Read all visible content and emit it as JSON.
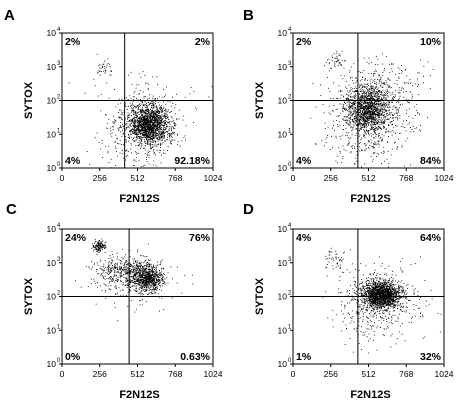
{
  "chart_data": [
    {
      "type": "scatter",
      "panel": "A",
      "xlabel": "F2N12S",
      "ylabel": "SYTOX",
      "xlim": [
        0,
        1024
      ],
      "ylim_log10": [
        0,
        4
      ],
      "x_ticks": [
        "0",
        "256",
        "512",
        "768",
        "1024"
      ],
      "y_ticks": [
        "10",
        "10",
        "10",
        "10",
        "10"
      ],
      "y_tick_exponents": [
        "0",
        "1",
        "2",
        "3",
        "4"
      ],
      "gate": {
        "x": 425,
        "y_log10": 2.0
      },
      "quadrants": {
        "upper_left": "2%",
        "upper_right": "2%",
        "lower_left": "4%",
        "lower_right": "92.18%"
      },
      "clusters": [
        {
          "x": 590,
          "y_log10": 1.3,
          "sx": 65,
          "sy": 0.28,
          "n": 1400
        },
        {
          "x": 570,
          "y_log10": 1.3,
          "sx": 130,
          "sy": 0.5,
          "n": 500
        },
        {
          "x": 280,
          "y_log10": 2.95,
          "sx": 30,
          "sy": 0.12,
          "n": 35
        },
        {
          "x": 450,
          "y_log10": 0.6,
          "sx": 140,
          "sy": 0.35,
          "n": 60
        },
        {
          "x": 500,
          "y_log10": 2.4,
          "sx": 150,
          "sy": 0.4,
          "n": 40
        }
      ]
    },
    {
      "type": "scatter",
      "panel": "B",
      "xlabel": "F2N12S",
      "ylabel": "SYTOX",
      "xlim": [
        0,
        1024
      ],
      "ylim_log10": [
        0,
        4
      ],
      "x_ticks": [
        "0",
        "256",
        "512",
        "768",
        "1024"
      ],
      "y_ticks": [
        "10",
        "10",
        "10",
        "10",
        "10"
      ],
      "y_tick_exponents": [
        "0",
        "1",
        "2",
        "3",
        "4"
      ],
      "gate": {
        "x": 440,
        "y_log10": 2.0
      },
      "quadrants": {
        "upper_left": "2%",
        "upper_right": "10%",
        "lower_left": "4%",
        "lower_right": "84%"
      },
      "clusters": [
        {
          "x": 500,
          "y_log10": 1.75,
          "sx": 75,
          "sy": 0.35,
          "n": 1200
        },
        {
          "x": 520,
          "y_log10": 1.6,
          "sx": 150,
          "sy": 0.6,
          "n": 500
        },
        {
          "x": 290,
          "y_log10": 3.2,
          "sx": 30,
          "sy": 0.15,
          "n": 45
        },
        {
          "x": 620,
          "y_log10": 2.5,
          "sx": 140,
          "sy": 0.45,
          "n": 180
        },
        {
          "x": 480,
          "y_log10": 0.6,
          "sx": 140,
          "sy": 0.35,
          "n": 80
        }
      ]
    },
    {
      "type": "scatter",
      "panel": "C",
      "xlabel": "F2N12S",
      "ylabel": "SYTOX",
      "xlim": [
        0,
        1024
      ],
      "ylim_log10": [
        0,
        4
      ],
      "x_ticks": [
        "0",
        "256",
        "512",
        "768",
        "1024"
      ],
      "y_ticks": [
        "10",
        "10",
        "10",
        "10",
        "10"
      ],
      "y_tick_exponents": [
        "0",
        "1",
        "2",
        "3",
        "4"
      ],
      "gate": {
        "x": 455,
        "y_log10": 2.0
      },
      "quadrants": {
        "upper_left": "24%",
        "upper_right": "76%",
        "lower_left": "0%",
        "lower_right": "0.63%"
      },
      "clusters": [
        {
          "x": 575,
          "y_log10": 2.55,
          "sx": 50,
          "sy": 0.2,
          "n": 700
        },
        {
          "x": 430,
          "y_log10": 2.75,
          "sx": 110,
          "sy": 0.25,
          "n": 450
        },
        {
          "x": 250,
          "y_log10": 3.5,
          "sx": 22,
          "sy": 0.09,
          "n": 130
        },
        {
          "x": 510,
          "y_log10": 2.4,
          "sx": 140,
          "sy": 0.4,
          "n": 150
        }
      ]
    },
    {
      "type": "scatter",
      "panel": "D",
      "xlabel": "F2N12S",
      "ylabel": "SYTOX",
      "xlim": [
        0,
        1024
      ],
      "ylim_log10": [
        0,
        4
      ],
      "x_ticks": [
        "0",
        "256",
        "512",
        "768",
        "1024"
      ],
      "y_ticks": [
        "10",
        "10",
        "10",
        "10",
        "10"
      ],
      "y_tick_exponents": [
        "0",
        "1",
        "2",
        "3",
        "4"
      ],
      "gate": {
        "x": 440,
        "y_log10": 2.0
      },
      "quadrants": {
        "upper_left": "4%",
        "upper_right": "64%",
        "lower_left": "1%",
        "lower_right": "32%"
      },
      "clusters": [
        {
          "x": 595,
          "y_log10": 2.05,
          "sx": 60,
          "sy": 0.2,
          "n": 1500
        },
        {
          "x": 590,
          "y_log10": 2.0,
          "sx": 140,
          "sy": 0.45,
          "n": 450
        },
        {
          "x": 290,
          "y_log10": 3.1,
          "sx": 35,
          "sy": 0.15,
          "n": 45
        },
        {
          "x": 500,
          "y_log10": 1.2,
          "sx": 130,
          "sy": 0.45,
          "n": 90
        }
      ]
    }
  ]
}
